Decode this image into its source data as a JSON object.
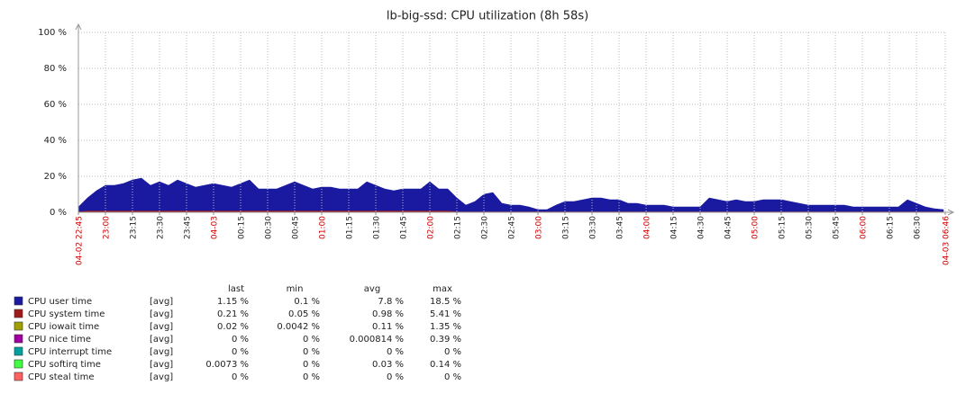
{
  "chart_data": {
    "type": "stacked_area",
    "title": "lb-big-ssd: CPU utilization (8h 58s)",
    "xlim": [
      0,
      481
    ],
    "xticks": [
      {
        "value": 0,
        "label": "04-02 22:45",
        "color": "#cc0000"
      },
      {
        "value": 15,
        "label": "23:00",
        "color": "#cc0000"
      },
      {
        "value": 30,
        "label": "23:15"
      },
      {
        "value": 45,
        "label": "23:30"
      },
      {
        "value": 60,
        "label": "23:45"
      },
      {
        "value": 75,
        "label": "04-03",
        "color": "#cc0000"
      },
      {
        "value": 90,
        "label": "00:15"
      },
      {
        "value": 105,
        "label": "00:30"
      },
      {
        "value": 120,
        "label": "00:45"
      },
      {
        "value": 135,
        "label": "01:00",
        "color": "#cc0000"
      },
      {
        "value": 150,
        "label": "01:15"
      },
      {
        "value": 165,
        "label": "01:30"
      },
      {
        "value": 180,
        "label": "01:45"
      },
      {
        "value": 195,
        "label": "02:00",
        "color": "#cc0000"
      },
      {
        "value": 210,
        "label": "02:15"
      },
      {
        "value": 225,
        "label": "02:30"
      },
      {
        "value": 240,
        "label": "02:45"
      },
      {
        "value": 255,
        "label": "03:00",
        "color": "#cc0000"
      },
      {
        "value": 270,
        "label": "03:15"
      },
      {
        "value": 285,
        "label": "03:30"
      },
      {
        "value": 300,
        "label": "03:45"
      },
      {
        "value": 315,
        "label": "04:00",
        "color": "#cc0000"
      },
      {
        "value": 330,
        "label": "04:15"
      },
      {
        "value": 345,
        "label": "04:30"
      },
      {
        "value": 360,
        "label": "04:45"
      },
      {
        "value": 375,
        "label": "05:00",
        "color": "#cc0000"
      },
      {
        "value": 390,
        "label": "05:15"
      },
      {
        "value": 405,
        "label": "05:30"
      },
      {
        "value": 420,
        "label": "05:45"
      },
      {
        "value": 435,
        "label": "06:00",
        "color": "#cc0000"
      },
      {
        "value": 450,
        "label": "06:15"
      },
      {
        "value": 465,
        "label": "06:30"
      },
      {
        "value": 481,
        "label": "04-03 06:46",
        "color": "#cc0000"
      }
    ],
    "ylim": [
      0,
      100
    ],
    "yticks": [
      {
        "value": 0,
        "label": "0 %"
      },
      {
        "value": 20,
        "label": "20 %"
      },
      {
        "value": 40,
        "label": "40 %"
      },
      {
        "value": 60,
        "label": "60 %"
      },
      {
        "value": 80,
        "label": "80 %"
      },
      {
        "value": 100,
        "label": "100 %"
      }
    ],
    "grid": true,
    "x": [
      0,
      5,
      10,
      15,
      20,
      25,
      30,
      35,
      40,
      45,
      50,
      55,
      60,
      65,
      70,
      75,
      80,
      85,
      90,
      95,
      100,
      105,
      110,
      115,
      120,
      125,
      130,
      135,
      140,
      145,
      150,
      155,
      160,
      165,
      170,
      175,
      180,
      185,
      190,
      195,
      200,
      205,
      210,
      215,
      220,
      225,
      230,
      235,
      240,
      245,
      250,
      255,
      260,
      265,
      270,
      275,
      280,
      285,
      290,
      295,
      300,
      305,
      310,
      315,
      320,
      325,
      330,
      335,
      340,
      345,
      350,
      355,
      360,
      365,
      370,
      375,
      380,
      385,
      390,
      395,
      400,
      405,
      410,
      415,
      420,
      425,
      430,
      435,
      440,
      445,
      450,
      455,
      460,
      465,
      470,
      475,
      480
    ],
    "legend_columns": [
      "last",
      "min",
      "avg",
      "max"
    ],
    "series": [
      {
        "name": "CPU user time",
        "color": "#1a1aa0",
        "func": "[avg]",
        "stats": [
          "1.15 %",
          "0.1 %",
          "7.8 %",
          "18.5 %"
        ],
        "values": [
          2.5,
          7,
          11,
          14,
          14,
          15,
          17,
          18,
          14,
          16,
          14,
          17,
          15,
          13,
          14,
          15,
          14,
          13,
          15,
          17,
          12,
          12,
          12,
          14,
          16,
          14,
          12,
          13,
          13,
          12,
          12,
          12,
          16,
          14,
          12,
          11,
          12,
          12,
          12,
          16,
          12,
          12,
          7.5,
          3.5,
          5.5,
          9.5,
          10.5,
          4.5,
          3.5,
          3.5,
          2.5,
          1,
          1,
          3.5,
          5.5,
          5.5,
          6.5,
          7.5,
          7.5,
          6.5,
          6.5,
          4.5,
          4.5,
          3.5,
          3.5,
          3.5,
          2.5,
          2.5,
          2.5,
          2.5,
          7.5,
          6.5,
          5.5,
          6.5,
          5.5,
          5.5,
          6.5,
          6.5,
          6.5,
          5.5,
          4.5,
          3.5,
          3.5,
          3.5,
          3.5,
          3.5,
          2.5,
          2.5,
          2.5,
          2.5,
          2.5,
          2.5,
          6.5,
          4.5,
          2.5,
          1.5,
          1
        ]
      },
      {
        "name": "CPU system time",
        "color": "#a01a1a",
        "func": "[avg]",
        "stats": [
          "0.21 %",
          "0.05 %",
          "0.98 %",
          "5.41 %"
        ],
        "values": [
          0.5,
          1,
          1,
          1,
          1,
          1,
          1,
          1,
          1,
          1,
          1,
          1,
          1,
          1,
          1,
          1,
          1,
          1,
          1,
          1,
          1,
          1,
          1,
          1,
          1,
          1,
          1,
          1,
          1,
          1,
          1,
          1,
          1,
          1,
          1,
          1,
          1,
          1,
          1,
          1,
          1,
          1,
          0.5,
          0.5,
          0.5,
          0.5,
          0.5,
          0.5,
          0.5,
          0.5,
          0.5,
          0.5,
          0.5,
          0.5,
          0.5,
          0.5,
          0.5,
          0.5,
          0.5,
          0.5,
          0.5,
          0.5,
          0.5,
          0.5,
          0.5,
          0.5,
          0.5,
          0.5,
          0.5,
          0.5,
          0.5,
          0.5,
          0.5,
          0.5,
          0.5,
          0.5,
          0.5,
          0.5,
          0.5,
          0.5,
          0.5,
          0.5,
          0.5,
          0.5,
          0.5,
          0.5,
          0.5,
          0.5,
          0.5,
          0.5,
          0.5,
          0.5,
          0.5,
          0.5,
          0.5,
          0.5,
          0.5
        ]
      },
      {
        "name": "CPU iowait time",
        "color": "#a0a000",
        "func": "[avg]",
        "stats": [
          "0.02 %",
          "0.0042 %",
          "0.11 %",
          "1.35 %"
        ]
      },
      {
        "name": "CPU nice time",
        "color": "#a000a0",
        "func": "[avg]",
        "stats": [
          "0 %",
          "0 %",
          "0.000814 %",
          "0.39 %"
        ]
      },
      {
        "name": "CPU interrupt time",
        "color": "#00a0a0",
        "func": "[avg]",
        "stats": [
          "0 %",
          "0 %",
          "0 %",
          "0 %"
        ]
      },
      {
        "name": "CPU softirq time",
        "color": "#40ff40",
        "func": "[avg]",
        "stats": [
          "0.0073 %",
          "0 %",
          "0.03 %",
          "0.14 %"
        ]
      },
      {
        "name": "CPU steal time",
        "color": "#ff6060",
        "func": "[avg]",
        "stats": [
          "0 %",
          "0 %",
          "0 %",
          "0 %"
        ]
      }
    ]
  }
}
